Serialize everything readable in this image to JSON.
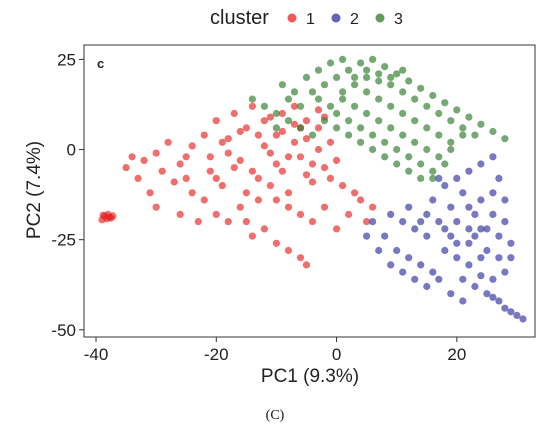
{
  "caption": "(C)",
  "chart_data": {
    "type": "scatter",
    "panel_label": "c",
    "xlabel": "PC1 (9.3%)",
    "ylabel": "PC2 (7.4%)",
    "xlim": [
      -42,
      33
    ],
    "ylim": [
      -52,
      29
    ],
    "xticks": [
      -40,
      -20,
      0,
      20
    ],
    "yticks": [
      25,
      0,
      -25,
      -50
    ],
    "grid": false,
    "legend": {
      "title": "cluster",
      "position": "top",
      "entries": [
        "1",
        "2",
        "3"
      ]
    },
    "series": [
      {
        "name": "1",
        "color": "#e8201f",
        "description": "red cluster spanning left/center",
        "points": [
          [
            -38.5,
            -18.5
          ],
          [
            -38,
            -18
          ],
          [
            -37.5,
            -19
          ],
          [
            -39,
            -19.5
          ],
          [
            -38.8,
            -18.2
          ],
          [
            -37.8,
            -18.8
          ],
          [
            -38.2,
            -19.2
          ],
          [
            -37.2,
            -18.4
          ],
          [
            -34,
            -2
          ],
          [
            -32,
            -3
          ],
          [
            -30,
            -1
          ],
          [
            -28,
            2
          ],
          [
            -26,
            -4
          ],
          [
            -25,
            -8
          ],
          [
            -24,
            1
          ],
          [
            -22,
            4
          ],
          [
            -21,
            -6
          ],
          [
            -20,
            8
          ],
          [
            -19,
            -10
          ],
          [
            -18,
            3
          ],
          [
            -17,
            10
          ],
          [
            -16,
            -3
          ],
          [
            -15,
            6
          ],
          [
            -14,
            12
          ],
          [
            -13,
            -8
          ],
          [
            -12,
            1
          ],
          [
            -11,
            9
          ],
          [
            -10,
            -4
          ],
          [
            -9,
            5
          ],
          [
            -8,
            -12
          ],
          [
            -7,
            7
          ],
          [
            -6,
            -2
          ],
          [
            -5,
            3
          ],
          [
            -4,
            -9
          ],
          [
            -3,
            6
          ],
          [
            -2,
            -5
          ],
          [
            -1,
            2
          ],
          [
            0,
            -3
          ],
          [
            -12,
            -22
          ],
          [
            -10,
            -26
          ],
          [
            -8,
            -28
          ],
          [
            -6,
            -30
          ],
          [
            -5,
            -32
          ],
          [
            -14,
            -24
          ],
          [
            -18,
            -20
          ],
          [
            -16,
            -16
          ],
          [
            -22,
            -14
          ],
          [
            -24,
            -12
          ],
          [
            -27,
            -9
          ],
          [
            -29,
            -6
          ],
          [
            -31,
            -12
          ],
          [
            -33,
            -8
          ],
          [
            -35,
            -5
          ],
          [
            -30,
            -16
          ],
          [
            -26,
            -18
          ],
          [
            -20,
            -18
          ],
          [
            -23,
            -20
          ],
          [
            -15,
            -20
          ],
          [
            -13,
            4
          ],
          [
            -11,
            -1
          ],
          [
            -9,
            -6
          ],
          [
            -7,
            2
          ],
          [
            -5,
            -7
          ],
          [
            -3,
            0
          ],
          [
            -1,
            -8
          ],
          [
            1,
            -10
          ],
          [
            3,
            -12
          ],
          [
            2,
            -18
          ],
          [
            -17,
            -5
          ],
          [
            -19,
            2
          ],
          [
            -21,
            -2
          ],
          [
            -15,
            -12
          ],
          [
            -13,
            -14
          ],
          [
            -11,
            -10
          ],
          [
            -9,
            10
          ],
          [
            -7,
            12
          ],
          [
            -5,
            8
          ],
          [
            -3,
            11
          ],
          [
            -20,
            -8
          ],
          [
            -18,
            -1
          ],
          [
            -16,
            5
          ],
          [
            -14,
            -6
          ],
          [
            -12,
            8
          ],
          [
            -10,
            4
          ],
          [
            -8,
            -2
          ],
          [
            -6,
            6
          ],
          [
            -4,
            -4
          ],
          [
            -2,
            9
          ],
          [
            4,
            -14
          ],
          [
            6,
            -16
          ],
          [
            5,
            -20
          ],
          [
            0,
            -22
          ],
          [
            -2,
            -16
          ],
          [
            -4,
            -20
          ],
          [
            -6,
            -18
          ],
          [
            -8,
            -16
          ],
          [
            -10,
            -14
          ],
          [
            -25,
            -2
          ]
        ]
      },
      {
        "name": "2",
        "color": "#2c2f9e",
        "description": "blue cluster at lower right",
        "points": [
          [
            12,
            -16
          ],
          [
            14,
            -20
          ],
          [
            16,
            -14
          ],
          [
            18,
            -10
          ],
          [
            20,
            -8
          ],
          [
            22,
            -6
          ],
          [
            24,
            -4
          ],
          [
            26,
            -2
          ],
          [
            27,
            -8
          ],
          [
            28,
            -14
          ],
          [
            26,
            -18
          ],
          [
            24,
            -22
          ],
          [
            22,
            -26
          ],
          [
            20,
            -30
          ],
          [
            21,
            -36
          ],
          [
            23,
            -38
          ],
          [
            25,
            -40
          ],
          [
            27,
            -42
          ],
          [
            29,
            -45
          ],
          [
            31,
            -47
          ],
          [
            30,
            -46
          ],
          [
            28,
            -44
          ],
          [
            26,
            -41
          ],
          [
            24,
            -35
          ],
          [
            22,
            -32
          ],
          [
            19,
            -24
          ],
          [
            17,
            -20
          ],
          [
            15,
            -24
          ],
          [
            13,
            -22
          ],
          [
            11,
            -20
          ],
          [
            9,
            -18
          ],
          [
            8,
            -24
          ],
          [
            10,
            -28
          ],
          [
            12,
            -30
          ],
          [
            14,
            -32
          ],
          [
            16,
            -34
          ],
          [
            18,
            -28
          ],
          [
            20,
            -20
          ],
          [
            22,
            -16
          ],
          [
            24,
            -14
          ],
          [
            26,
            -12
          ],
          [
            28,
            -20
          ],
          [
            29,
            -26
          ],
          [
            27,
            -30
          ],
          [
            25,
            -28
          ],
          [
            23,
            -24
          ],
          [
            21,
            -12
          ],
          [
            19,
            -16
          ],
          [
            17,
            -8
          ],
          [
            15,
            -18
          ],
          [
            6,
            -20
          ],
          [
            5,
            -24
          ],
          [
            7,
            -28
          ],
          [
            9,
            -32
          ],
          [
            11,
            -34
          ],
          [
            13,
            -36
          ],
          [
            15,
            -38
          ],
          [
            17,
            -36
          ],
          [
            19,
            -40
          ],
          [
            21,
            -42
          ],
          [
            23,
            -18
          ],
          [
            25,
            -22
          ],
          [
            27,
            -24
          ],
          [
            29,
            -30
          ],
          [
            28,
            -34
          ],
          [
            26,
            -36
          ],
          [
            24,
            -30
          ],
          [
            22,
            -22
          ],
          [
            20,
            -26
          ],
          [
            18,
            -22
          ]
        ]
      },
      {
        "name": "3",
        "color": "#2c7a2a",
        "description": "green cluster at top center/right",
        "points": [
          [
            -10,
            10
          ],
          [
            -8,
            14
          ],
          [
            -6,
            12
          ],
          [
            -4,
            16
          ],
          [
            -2,
            18
          ],
          [
            0,
            20
          ],
          [
            2,
            22
          ],
          [
            4,
            24
          ],
          [
            6,
            25
          ],
          [
            8,
            23
          ],
          [
            10,
            21
          ],
          [
            12,
            19
          ],
          [
            14,
            17
          ],
          [
            16,
            15
          ],
          [
            18,
            13
          ],
          [
            20,
            11
          ],
          [
            22,
            9
          ],
          [
            24,
            7
          ],
          [
            26,
            5
          ],
          [
            28,
            3
          ],
          [
            -2,
            8
          ],
          [
            0,
            6
          ],
          [
            2,
            4
          ],
          [
            4,
            2
          ],
          [
            6,
            0
          ],
          [
            8,
            -2
          ],
          [
            10,
            -4
          ],
          [
            12,
            -6
          ],
          [
            14,
            -8
          ],
          [
            16,
            -6
          ],
          [
            1,
            14
          ],
          [
            3,
            12
          ],
          [
            5,
            10
          ],
          [
            7,
            8
          ],
          [
            9,
            6
          ],
          [
            11,
            4
          ],
          [
            13,
            2
          ],
          [
            15,
            0
          ],
          [
            17,
            -2
          ],
          [
            19,
            0
          ],
          [
            3,
            18
          ],
          [
            5,
            16
          ],
          [
            7,
            14
          ],
          [
            9,
            12
          ],
          [
            11,
            10
          ],
          [
            13,
            8
          ],
          [
            15,
            6
          ],
          [
            17,
            4
          ],
          [
            19,
            2
          ],
          [
            21,
            4
          ],
          [
            -4,
            4
          ],
          [
            -6,
            6
          ],
          [
            -8,
            8
          ],
          [
            -10,
            6
          ],
          [
            -12,
            12
          ],
          [
            -14,
            14
          ],
          [
            -5,
            20
          ],
          [
            -3,
            22
          ],
          [
            -1,
            24
          ],
          [
            1,
            25
          ],
          [
            5,
            20
          ],
          [
            7,
            19
          ],
          [
            9,
            18
          ],
          [
            11,
            16
          ],
          [
            13,
            14
          ],
          [
            15,
            12
          ],
          [
            17,
            10
          ],
          [
            19,
            8
          ],
          [
            21,
            6
          ],
          [
            23,
            4
          ],
          [
            0,
            10
          ],
          [
            2,
            8
          ],
          [
            4,
            6
          ],
          [
            6,
            4
          ],
          [
            8,
            2
          ],
          [
            10,
            0
          ],
          [
            12,
            -2
          ],
          [
            14,
            -4
          ],
          [
            16,
            -8
          ],
          [
            18,
            -4
          ],
          [
            -7,
            16
          ],
          [
            -9,
            18
          ],
          [
            -3,
            14
          ],
          [
            -1,
            12
          ],
          [
            1,
            16
          ],
          [
            3,
            20
          ],
          [
            5,
            22
          ],
          [
            7,
            21
          ],
          [
            9,
            20
          ],
          [
            11,
            22
          ]
        ]
      }
    ]
  }
}
